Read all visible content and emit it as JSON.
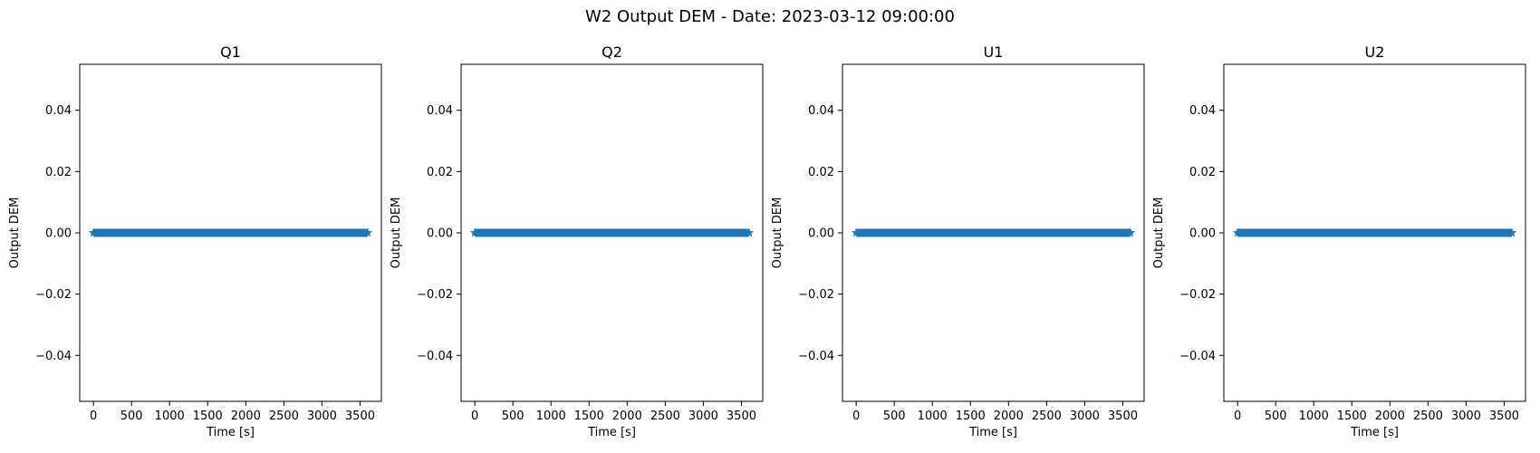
{
  "figure": {
    "title": "W2 Output DEM - Date: 2023-03-12 09:00:00"
  },
  "chart_data": [
    {
      "type": "scatter",
      "title": "Q1",
      "xlabel": "Time [s]",
      "ylabel": "Output DEM",
      "xlim": [
        -180,
        3780
      ],
      "ylim": [
        -0.055,
        0.055
      ],
      "xticks": [
        0,
        500,
        1000,
        1500,
        2000,
        2500,
        3000,
        3500
      ],
      "yticks": [
        -0.04,
        -0.02,
        0.0,
        0.02,
        0.04
      ],
      "ytick_labels": [
        "−0.04",
        "−0.02",
        "0.00",
        "0.02",
        "0.04"
      ],
      "marker": "star",
      "color": "#1f77b4",
      "series": [
        {
          "x_start": 0,
          "x_end": 3600,
          "x_step": 1,
          "y": 0
        }
      ]
    },
    {
      "type": "scatter",
      "title": "Q2",
      "xlabel": "Time [s]",
      "ylabel": "Output DEM",
      "xlim": [
        -180,
        3780
      ],
      "ylim": [
        -0.055,
        0.055
      ],
      "xticks": [
        0,
        500,
        1000,
        1500,
        2000,
        2500,
        3000,
        3500
      ],
      "yticks": [
        -0.04,
        -0.02,
        0.0,
        0.02,
        0.04
      ],
      "ytick_labels": [
        "−0.04",
        "−0.02",
        "0.00",
        "0.02",
        "0.04"
      ],
      "marker": "star",
      "color": "#1f77b4",
      "series": [
        {
          "x_start": 0,
          "x_end": 3600,
          "x_step": 1,
          "y": 0
        }
      ]
    },
    {
      "type": "scatter",
      "title": "U1",
      "xlabel": "Time [s]",
      "ylabel": "Output DEM",
      "xlim": [
        -180,
        3780
      ],
      "ylim": [
        -0.055,
        0.055
      ],
      "xticks": [
        0,
        500,
        1000,
        1500,
        2000,
        2500,
        3000,
        3500
      ],
      "yticks": [
        -0.04,
        -0.02,
        0.0,
        0.02,
        0.04
      ],
      "ytick_labels": [
        "−0.04",
        "−0.02",
        "0.00",
        "0.02",
        "0.04"
      ],
      "marker": "star",
      "color": "#1f77b4",
      "series": [
        {
          "x_start": 0,
          "x_end": 3600,
          "x_step": 1,
          "y": 0
        }
      ]
    },
    {
      "type": "scatter",
      "title": "U2",
      "xlabel": "Time [s]",
      "ylabel": "Output DEM",
      "xlim": [
        -180,
        3780
      ],
      "ylim": [
        -0.055,
        0.055
      ],
      "xticks": [
        0,
        500,
        1000,
        1500,
        2000,
        2500,
        3000,
        3500
      ],
      "yticks": [
        -0.04,
        -0.02,
        0.0,
        0.02,
        0.04
      ],
      "ytick_labels": [
        "−0.04",
        "−0.02",
        "0.00",
        "0.02",
        "0.04"
      ],
      "marker": "star",
      "color": "#1f77b4",
      "series": [
        {
          "x_start": 0,
          "x_end": 3600,
          "x_step": 1,
          "y": 0
        }
      ]
    }
  ]
}
